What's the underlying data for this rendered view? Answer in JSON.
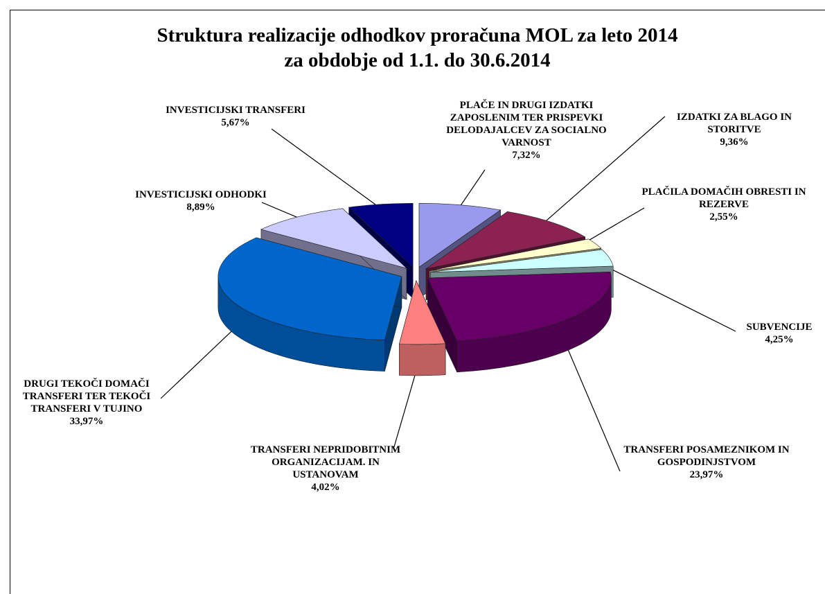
{
  "chart_data": {
    "type": "pie3d",
    "title": "Struktura realizacije odhodkov proračuna MOL za leto 2014",
    "subtitle": "za obdobje od 1.1. do 30.6.2014",
    "categories": [
      "PLAČE IN DRUGI IZDATKI ZAPOSLENIM TER PRISPEVKI DELODAJALCEV ZA SOCIALNO VARNOST",
      "IZDATKI ZA BLAGO IN STORITVE",
      "PLAČILA DOMAČIH OBRESTI IN REZERVE",
      "SUBVENCIJE",
      "TRANSFERI POSAMEZNIKOM IN GOSPODINJSTVOM",
      "TRANSFERI NEPRIDOBITNIM ORGANIZACIJAM. IN USTANOVAM",
      "DRUGI TEKOČI DOMAČI TRANSFERI TER TEKOČI TRANSFERI V TUJINO",
      "INVESTICIJSKI ODHODKI",
      "INVESTICIJSKI TRANSFERI"
    ],
    "values": [
      7.32,
      9.36,
      2.55,
      4.25,
      23.97,
      4.02,
      33.97,
      8.89,
      5.67
    ],
    "value_labels": [
      "7,32%",
      "9,36%",
      "2,55%",
      "4,25%",
      "23,97%",
      "4,02%",
      "33,97%",
      "8,89%",
      "5,67%"
    ],
    "colors": [
      "#9999ee",
      "#8b2252",
      "#ffffcc",
      "#ccffff",
      "#660066",
      "#ff8080",
      "#0066cc",
      "#ccccff",
      "#000080"
    ]
  }
}
